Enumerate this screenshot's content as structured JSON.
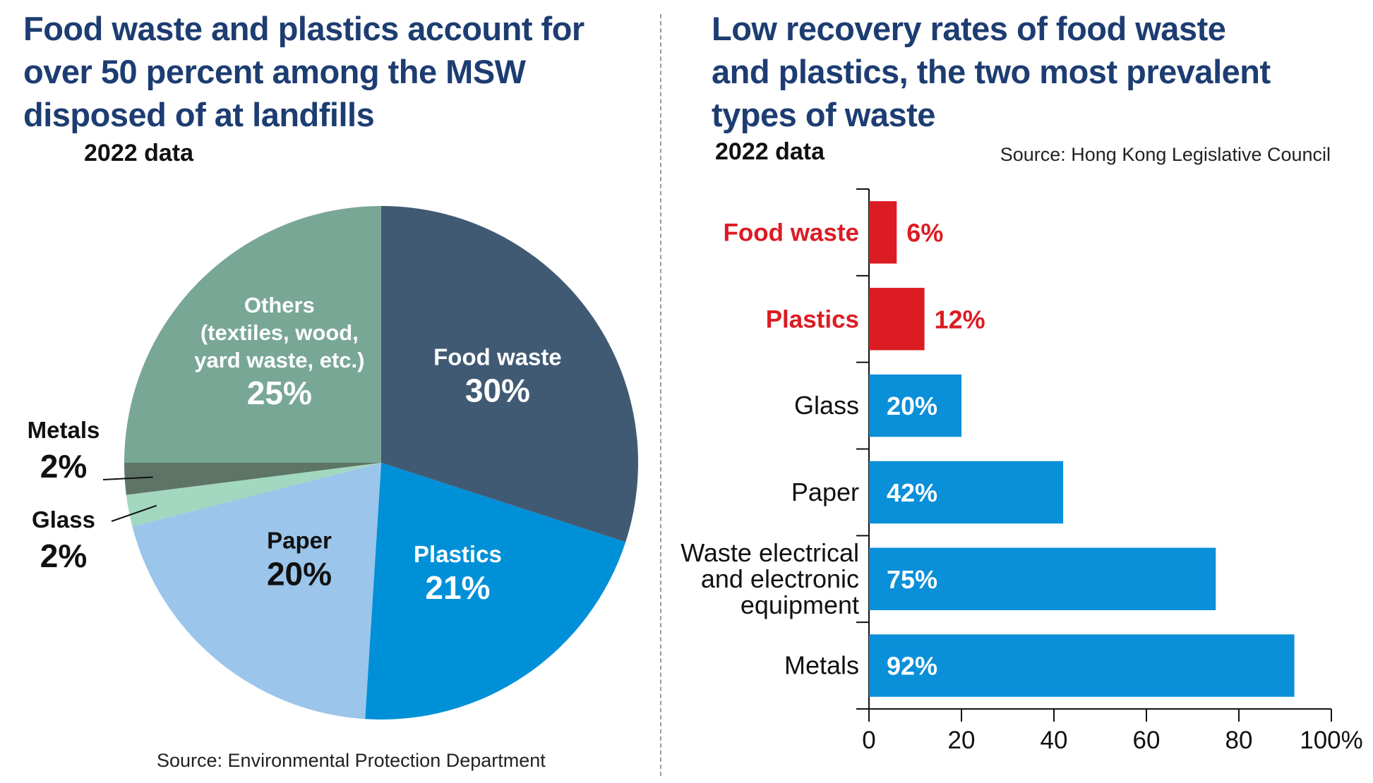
{
  "pie": {
    "title": "Food waste and plastics account for\nover 50 percent among the MSW\ndisposed of at landfills",
    "subtitle": "2022 data",
    "source": "Source: Environmental Protection Department"
  },
  "bar": {
    "title": "Low recovery rates of food waste\nand plastics, the two most prevalent\ntypes of waste",
    "subtitle": "2022 data",
    "source": "Source: Hong Kong Legislative Council"
  },
  "chart_data": [
    {
      "type": "pie",
      "title": "Food waste and plastics account for over 50 percent among the MSW disposed of at landfills",
      "subtitle": "2022 data",
      "slices": [
        {
          "label": "Food waste",
          "value": 30,
          "display": "30%",
          "color": "#415a74"
        },
        {
          "label": "Plastics",
          "value": 21,
          "display": "21%",
          "color": "#0090d8"
        },
        {
          "label": "Paper",
          "value": 20,
          "display": "20%",
          "color": "#9bc5ea"
        },
        {
          "label": "Glass",
          "value": 2,
          "display": "2%",
          "color": "#a2d7c0"
        },
        {
          "label": "Metals",
          "value": 2,
          "display": "2%",
          "color": "#5e7467"
        },
        {
          "label": "Others\n(textiles, wood,\nyard waste, etc.)",
          "value": 25,
          "display": "25%",
          "color": "#79a796"
        }
      ]
    },
    {
      "type": "bar",
      "orientation": "horizontal",
      "title": "Low recovery rates of food waste and plastics, the two most prevalent types of waste",
      "subtitle": "2022 data",
      "categories": [
        "Food waste",
        "Plastics",
        "Glass",
        "Paper",
        "Waste electrical\nand electronic\nequipment",
        "Metals"
      ],
      "values": [
        6,
        12,
        20,
        42,
        75,
        92
      ],
      "value_labels": [
        "6%",
        "12%",
        "20%",
        "42%",
        "75%",
        "92%"
      ],
      "highlight": [
        true,
        true,
        false,
        false,
        false,
        false
      ],
      "colors": {
        "highlight": "#dc1c23",
        "normal": "#0a8fd9"
      },
      "xticks": [
        0,
        20,
        40,
        60,
        80,
        100
      ],
      "xtick_labels": [
        "0",
        "20",
        "40",
        "60",
        "80",
        "100%"
      ],
      "xlim": [
        0,
        100
      ]
    }
  ]
}
